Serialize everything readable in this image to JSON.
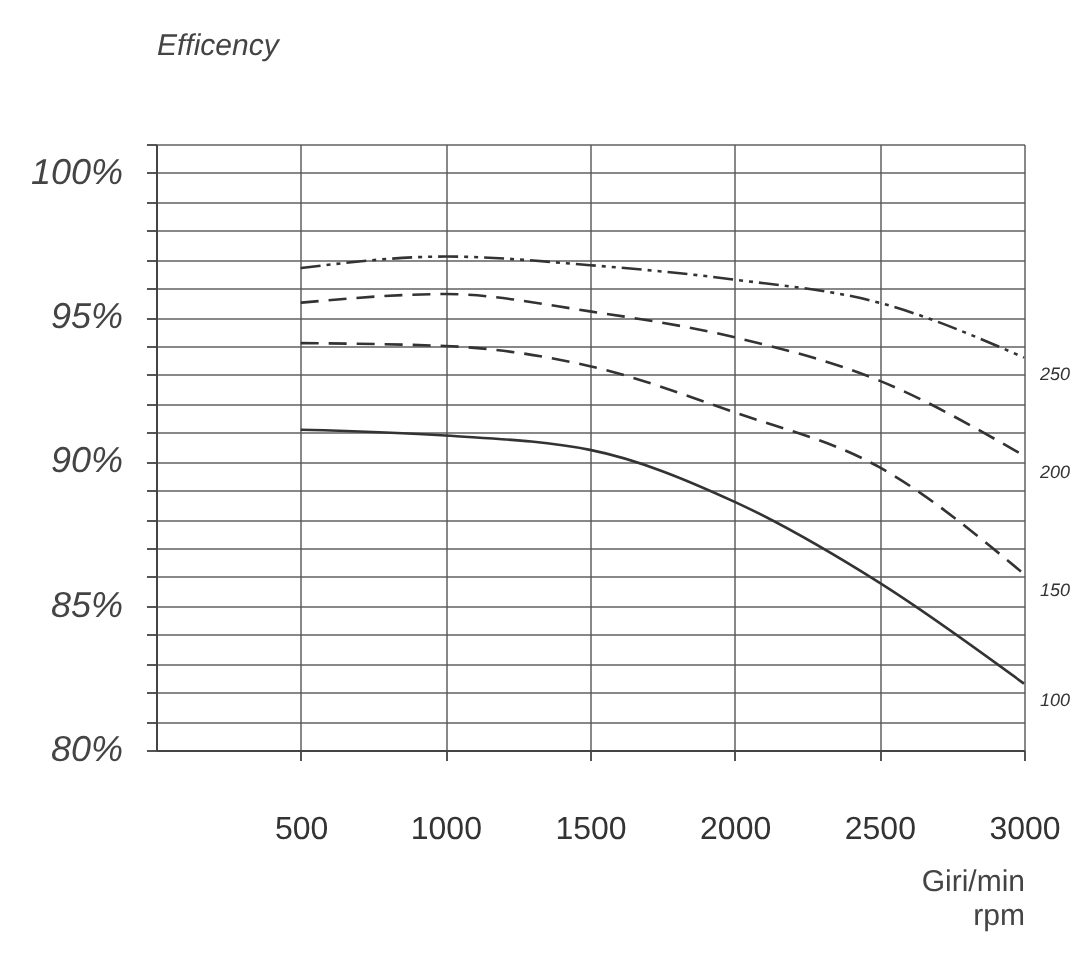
{
  "chart_data": {
    "type": "line",
    "ylabel": "Efficency",
    "xlabel": "Giri/min\nrpm",
    "x": [
      500,
      1000,
      1500,
      2000,
      2500,
      3000
    ],
    "xlim": [
      0,
      3000
    ],
    "xticks": [
      500,
      1000,
      1500,
      2000,
      2500,
      3000
    ],
    "ylim": [
      80,
      101
    ],
    "yticks": [
      {
        "value": 80,
        "label": "80%"
      },
      {
        "value": 81,
        "label": null
      },
      {
        "value": 82,
        "label": null
      },
      {
        "value": 83,
        "label": null
      },
      {
        "value": 84,
        "label": null
      },
      {
        "value": 85,
        "label": "85%"
      },
      {
        "value": 86,
        "label": null
      },
      {
        "value": 87,
        "label": null
      },
      {
        "value": 88,
        "label": null
      },
      {
        "value": 89,
        "label": null
      },
      {
        "value": 90,
        "label": "90%"
      },
      {
        "value": 91,
        "label": null
      },
      {
        "value": 92,
        "label": null
      },
      {
        "value": 93,
        "label": null
      },
      {
        "value": 94,
        "label": null
      },
      {
        "value": 95,
        "label": "95%"
      },
      {
        "value": 96,
        "label": null
      },
      {
        "value": 97,
        "label": null
      },
      {
        "value": 98,
        "label": null
      },
      {
        "value": 99,
        "label": null
      },
      {
        "value": 100,
        "label": "100%"
      },
      {
        "value": 101,
        "label": null
      }
    ],
    "grid": true,
    "series": [
      {
        "name": "250",
        "color": "#333333",
        "line_style": "dotted",
        "values": [
          96.7,
          97.1,
          96.8,
          96.3,
          95.5,
          93.6
        ]
      },
      {
        "name": "200",
        "color": "#333333",
        "line_style": "dashed",
        "values": [
          95.5,
          95.8,
          95.2,
          94.3,
          92.8,
          90.2
        ]
      },
      {
        "name": "150",
        "color": "#333333",
        "line_style": "dashed",
        "values": [
          94.1,
          94.0,
          93.3,
          91.7,
          89.8,
          86.1
        ]
      },
      {
        "name": "100",
        "color": "#333333",
        "line_style": "solid",
        "values": [
          91.1,
          90.9,
          90.4,
          88.6,
          85.8,
          82.3
        ]
      }
    ]
  }
}
